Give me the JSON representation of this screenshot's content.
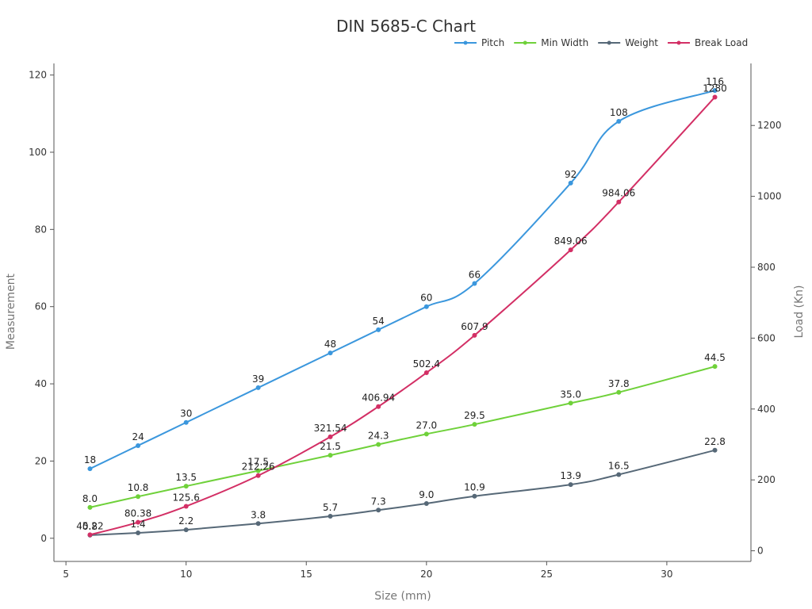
{
  "chart_data": {
    "type": "line",
    "title": "DIN 5685-C Chart",
    "xlabel": "Size (mm)",
    "ylabel": "Measurement",
    "y2label": "Load (Kn)",
    "x": [
      6,
      8,
      10,
      13,
      16,
      18,
      20,
      22,
      26,
      28,
      32
    ],
    "xlim": [
      4.5,
      33.5
    ],
    "xticks": [
      5,
      10,
      15,
      20,
      25,
      30
    ],
    "ylim": [
      -6,
      123
    ],
    "yticks": [
      0,
      20,
      40,
      60,
      80,
      100,
      120
    ],
    "y2lim": [
      -30,
      1375
    ],
    "y2ticks": [
      0,
      200,
      400,
      600,
      800,
      1000,
      1200
    ],
    "legend_position": "top-right",
    "grid": false,
    "series": [
      {
        "name": "Pitch",
        "axis": "left",
        "color": "#3b97dd",
        "labels": [
          "18",
          "24",
          "30",
          "39",
          "48",
          "54",
          "60",
          "66",
          "92",
          "108",
          "116"
        ],
        "values": [
          18,
          24,
          30,
          39,
          48,
          54,
          60,
          66,
          92,
          108,
          116
        ]
      },
      {
        "name": "Min Width",
        "axis": "left",
        "color": "#6fd13a",
        "labels": [
          "8.0",
          "10.8",
          "13.5",
          "17.5",
          "21.5",
          "24.3",
          "27.0",
          "29.5",
          "35.0",
          "37.8",
          "44.5"
        ],
        "values": [
          8.0,
          10.8,
          13.5,
          17.5,
          21.5,
          24.3,
          27.0,
          29.5,
          35.0,
          37.8,
          44.5
        ]
      },
      {
        "name": "Weight",
        "axis": "left",
        "color": "#566877",
        "labels": [
          "0.8",
          "1.4",
          "2.2",
          "3.8",
          "5.7",
          "7.3",
          "9.0",
          "10.9",
          "13.9",
          "16.5",
          "22.8"
        ],
        "values": [
          0.8,
          1.4,
          2.2,
          3.8,
          5.7,
          7.3,
          9.0,
          10.9,
          13.9,
          16.5,
          22.8
        ]
      },
      {
        "name": "Break Load",
        "axis": "right",
        "color": "#d32f65",
        "labels": [
          "45.22",
          "80.38",
          "125.6",
          "212.26",
          "321.54",
          "406.94",
          "502.4",
          "607.9",
          "849.06",
          "984.06",
          "1280"
        ],
        "values": [
          45.22,
          80.38,
          125.6,
          212.26,
          321.54,
          406.94,
          502.4,
          607.9,
          849.06,
          984.06,
          1280
        ]
      }
    ]
  }
}
